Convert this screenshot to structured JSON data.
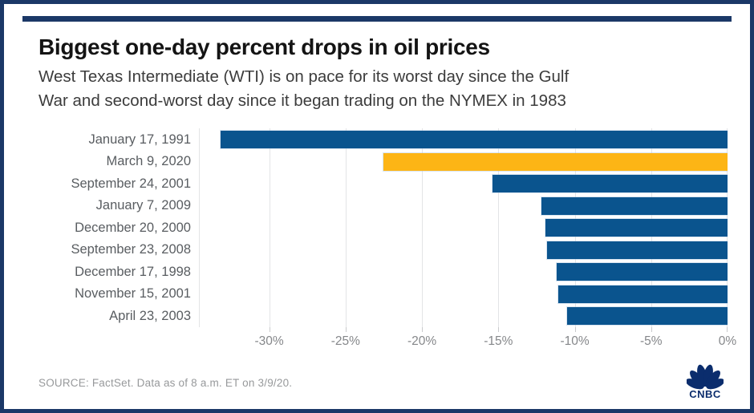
{
  "header": {
    "title": "Biggest one-day percent drops in oil prices",
    "subtitle_line1": "West Texas Intermediate (WTI) is on pace for its worst day since the Gulf",
    "subtitle_line2": "War and second-worst day since it began trading on the NYMEX in 1983"
  },
  "chart_data": {
    "type": "bar",
    "orientation": "horizontal",
    "title": "Biggest one-day percent drops in oil prices",
    "categories": [
      "January 17, 1991",
      "March 9, 2020",
      "September 24, 2001",
      "January 7, 2009",
      "December 20, 2000",
      "September 23, 2008",
      "December 17, 1998",
      "November 15, 2001",
      "April 23, 2003"
    ],
    "values": [
      -33.2,
      -22.5,
      -15.4,
      -12.2,
      -11.9,
      -11.8,
      -11.2,
      -11.1,
      -10.5
    ],
    "highlight_index": 1,
    "bar_color": "#0a548e",
    "highlight_color": "#fdb515",
    "axis": {
      "min": -34.6,
      "max": 0,
      "ticks": [
        -30,
        -25,
        -20,
        -15,
        -10,
        -5,
        0
      ],
      "tick_labels": [
        "-30%",
        "-25%",
        "-20%",
        "-15%",
        "-10%",
        "-5%",
        "0%"
      ]
    },
    "grid": true,
    "legend": false
  },
  "footer": {
    "source": "SOURCE: FactSet. Data as of 8 a.m. ET on 3/9/20.",
    "logo_text": "CNBC"
  },
  "colors": {
    "frame_navy": "#1b3867",
    "logo_navy": "#0b2d6d",
    "gridline": "#e3e4e6"
  }
}
